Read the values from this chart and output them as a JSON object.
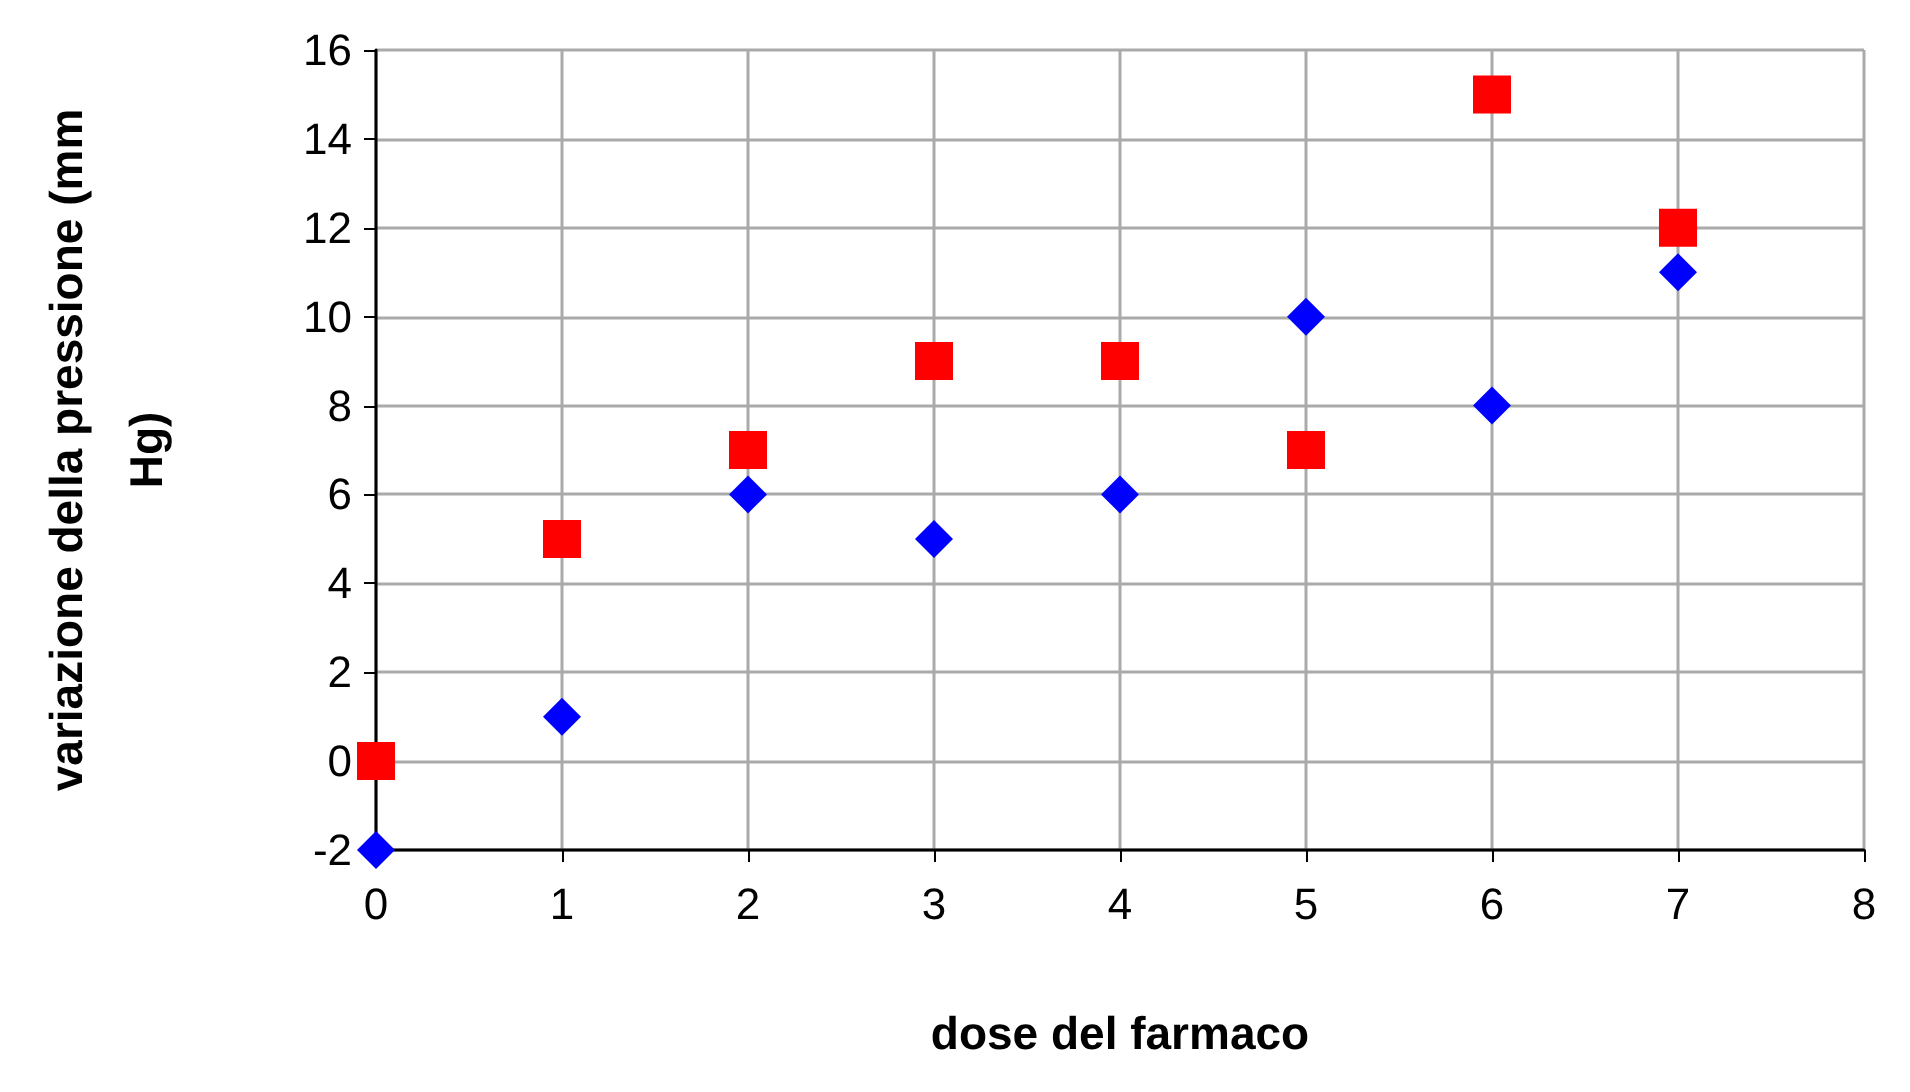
{
  "chart_data": {
    "type": "scatter",
    "xlabel": "dose del farmaco",
    "ylabel": "variazione della pressione (mm Hg)",
    "series": [
      {
        "color": "#ff0000",
        "marker": "square",
        "x": [
          0,
          1,
          2,
          3,
          4,
          5,
          6,
          7
        ],
        "values": [
          0,
          5,
          7,
          9,
          9,
          7,
          15,
          12
        ]
      },
      {
        "color": "#0000ff",
        "marker": "diamond",
        "x": [
          0,
          1,
          2,
          3,
          4,
          5,
          6,
          7
        ],
        "values": [
          -2,
          1,
          6,
          5,
          6,
          10,
          8,
          11
        ]
      }
    ],
    "xlim": [
      0,
      8
    ],
    "xticks": [
      0,
      1,
      2,
      3,
      4,
      5,
      6,
      7,
      8
    ],
    "ylim": [
      -2,
      16
    ],
    "yticks": [
      -2,
      0,
      2,
      4,
      6,
      8,
      10,
      12,
      14,
      16
    ],
    "grid": true
  }
}
